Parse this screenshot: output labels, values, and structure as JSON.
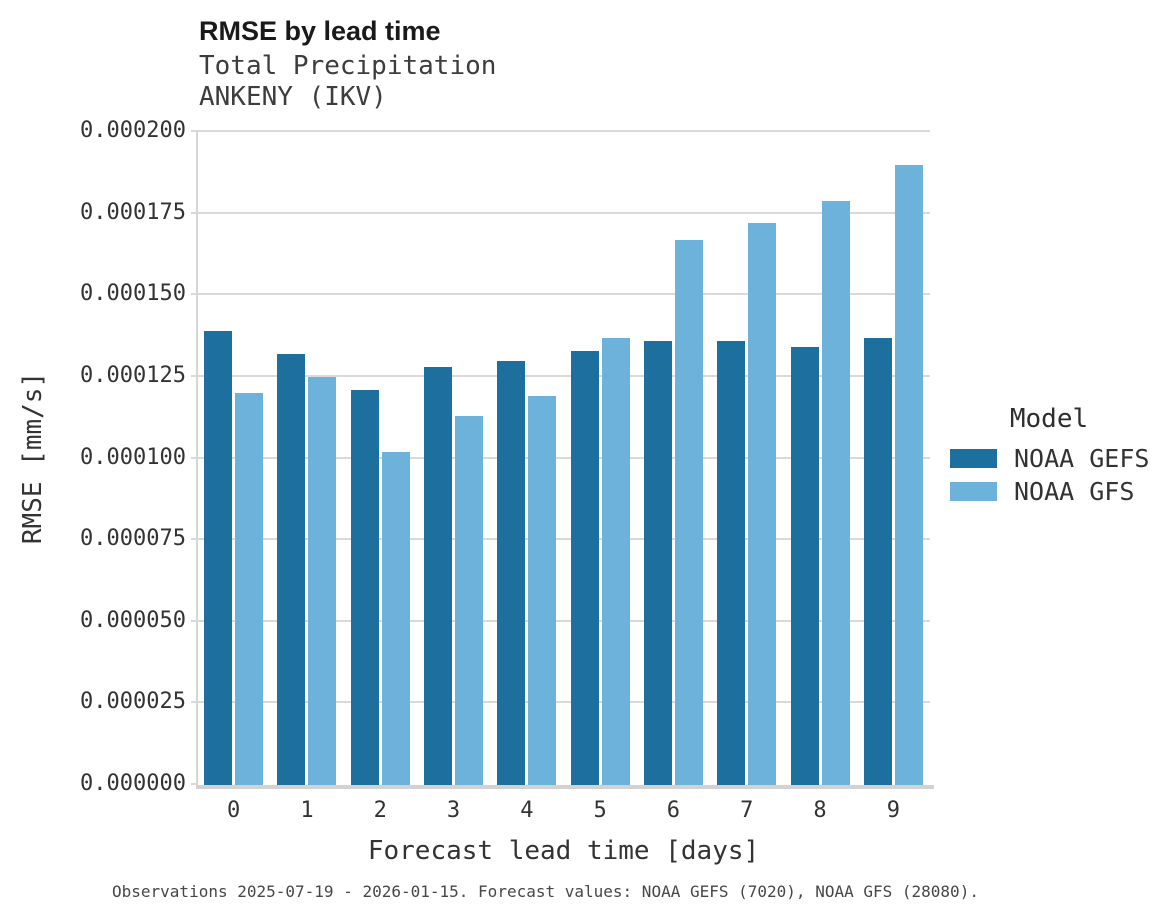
{
  "chart_data": {
    "type": "bar",
    "title": "RMSE by lead time",
    "subtitle_lines": [
      "Total Precipitation",
      "ANKENY (IKV)"
    ],
    "xlabel": "Forecast lead time [days]",
    "ylabel": "RMSE [mm/s]",
    "categories": [
      "0",
      "1",
      "2",
      "3",
      "4",
      "5",
      "6",
      "7",
      "8",
      "9"
    ],
    "series": [
      {
        "name": "NOAA GEFS",
        "color": "#1d6f9e",
        "values": [
          0.000139,
          0.000132,
          0.000121,
          0.000128,
          0.00013,
          0.000133,
          0.000136,
          0.000136,
          0.000134,
          0.000137
        ]
      },
      {
        "name": "NOAA GFS",
        "color": "#6db2da",
        "values": [
          0.00012,
          0.000125,
          0.000102,
          0.000113,
          0.000119,
          0.000137,
          0.000167,
          0.000172,
          0.000179,
          0.00019
        ]
      }
    ],
    "ylim": [
      0,
      0.0002
    ],
    "ytick_labels": [
      "0.000000",
      "0.000025",
      "0.000050",
      "0.000075",
      "0.000100",
      "0.000125",
      "0.000150",
      "0.000175",
      "0.000200"
    ],
    "grid": true,
    "legend_position": "right",
    "legend_title": "Model"
  },
  "caption": "Observations 2025-07-19 - 2026-01-15. Forecast values: NOAA GEFS (7020), NOAA GFS (28080)."
}
